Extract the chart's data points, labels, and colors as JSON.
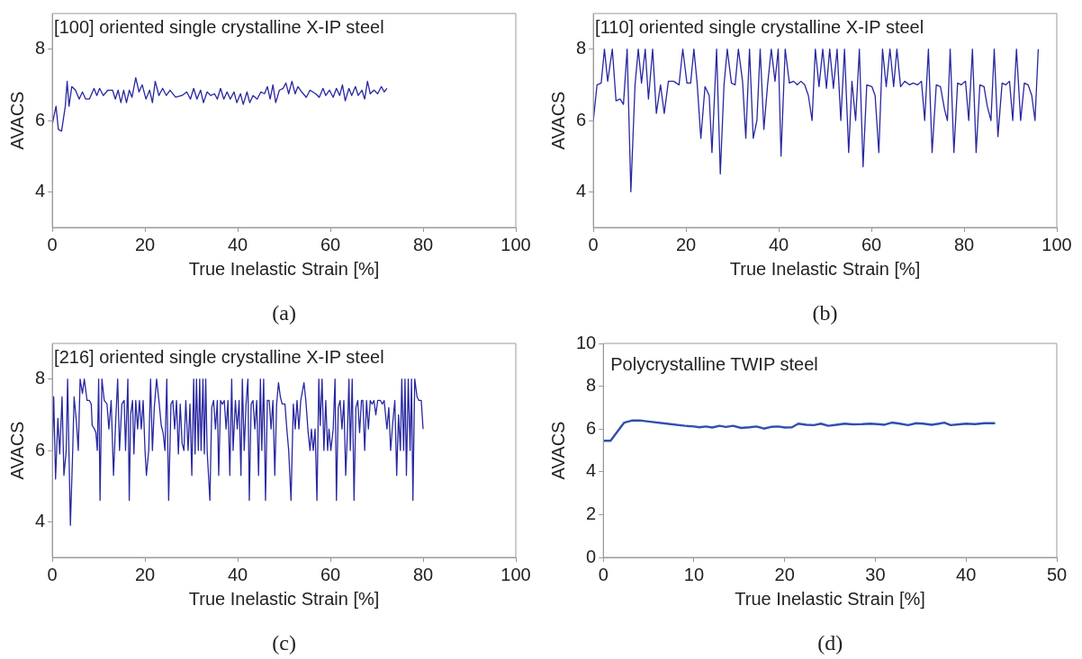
{
  "chart_data": [
    {
      "type": "line",
      "title": "[100] oriented single crystalline X-IP steel",
      "xlabel": "True Inelastic Strain [%]",
      "ylabel": "AVACS",
      "annotations": [
        "(a)"
      ],
      "color": "#2828a0",
      "grid": false,
      "legend": false,
      "marker": "none",
      "line_style": "solid",
      "xlim": [
        0,
        100
      ],
      "ylim": [
        3,
        9
      ],
      "xticks": [
        0,
        20,
        40,
        60,
        80,
        100
      ],
      "yticks": [
        4,
        6,
        8
      ],
      "x": [
        0,
        0.8,
        1.3,
        2,
        2.8,
        3.2,
        3.6,
        4.2,
        5,
        5.8,
        6.5,
        7.2,
        8,
        9,
        9.6,
        10.2,
        11,
        12,
        13,
        13.6,
        14.2,
        14.8,
        15.4,
        16,
        16.6,
        17.2,
        18,
        18.7,
        19.4,
        20.2,
        21,
        21.6,
        22.2,
        23,
        23.8,
        24.6,
        25.4,
        26.6,
        28,
        29,
        29.8,
        30.5,
        31.2,
        32,
        32.6,
        33.4,
        34.2,
        35,
        35.6,
        36.3,
        37,
        37.7,
        38.4,
        39.2,
        39.8,
        40.6,
        41.2,
        42,
        42.6,
        43.3,
        44.2,
        45,
        45.8,
        46.4,
        47,
        47.6,
        48.2,
        49,
        49.8,
        50.4,
        51,
        51.7,
        52.4,
        53,
        53.8,
        54.8,
        55.6,
        56.8,
        57.6,
        58.4,
        59,
        59.8,
        60.6,
        61.3,
        62,
        62.6,
        63.2,
        64,
        64.6,
        65.4,
        66,
        66.8,
        67.4,
        68,
        68.6,
        69.4,
        70.2,
        71,
        71.6,
        72.2
      ],
      "values": [
        5.9,
        6.4,
        5.75,
        5.7,
        6.4,
        7.1,
        6.4,
        6.95,
        6.85,
        6.6,
        6.8,
        6.6,
        6.6,
        6.9,
        6.7,
        6.9,
        6.7,
        6.85,
        6.85,
        6.6,
        6.85,
        6.5,
        6.85,
        6.5,
        6.85,
        6.65,
        7.2,
        6.8,
        7.0,
        6.6,
        6.85,
        6.5,
        7.1,
        6.7,
        6.9,
        6.7,
        6.85,
        6.65,
        6.7,
        6.8,
        6.6,
        6.9,
        6.6,
        6.85,
        6.5,
        6.8,
        6.7,
        6.75,
        6.6,
        6.9,
        6.6,
        6.8,
        6.6,
        6.8,
        6.5,
        6.75,
        6.45,
        6.8,
        6.5,
        6.7,
        6.6,
        6.8,
        6.75,
        6.95,
        6.6,
        7.0,
        6.5,
        6.85,
        6.9,
        7.05,
        6.75,
        7.1,
        6.75,
        6.95,
        6.8,
        6.65,
        6.85,
        6.75,
        6.65,
        6.9,
        6.7,
        6.85,
        6.65,
        6.9,
        6.7,
        7.0,
        6.55,
        6.9,
        6.7,
        6.95,
        6.7,
        6.85,
        6.6,
        7.1,
        6.75,
        6.85,
        6.75,
        6.95,
        6.8,
        6.9
      ]
    },
    {
      "type": "line",
      "title": "[110] oriented single crystalline X-IP steel",
      "xlabel": "True Inelastic Strain [%]",
      "ylabel": "AVACS",
      "annotations": [
        "(b)"
      ],
      "color": "#2828a0",
      "grid": false,
      "legend": false,
      "marker": "none",
      "line_style": "solid",
      "xlim": [
        0,
        100
      ],
      "ylim": [
        3,
        9
      ],
      "xticks": [
        0,
        20,
        40,
        60,
        80,
        100
      ],
      "yticks": [
        4,
        6,
        8
      ],
      "x": [
        0,
        0.8,
        1.7,
        2.4,
        3.1,
        4.1,
        4.9,
        5.8,
        6.5,
        7.3,
        8.1,
        9,
        9.7,
        10.4,
        11.2,
        11.9,
        12.8,
        13.6,
        14.5,
        15.3,
        16.2,
        17.3,
        18.5,
        19.3,
        20.2,
        21,
        21.7,
        22.4,
        23.2,
        24.1,
        25,
        25.6,
        26.6,
        27.4,
        28.2,
        28.9,
        29.8,
        30.6,
        31.3,
        32.2,
        32.9,
        33.7,
        34.5,
        35.3,
        36,
        36.8,
        37.6,
        38.4,
        39.2,
        39.9,
        40.5,
        41.4,
        42.3,
        43.2,
        44,
        44.8,
        45.6,
        46.4,
        47.2,
        47.9,
        48.7,
        49.5,
        50.3,
        51,
        51.8,
        52.6,
        53.4,
        54.2,
        55.1,
        55.8,
        56.6,
        57.4,
        58.2,
        59,
        60.1,
        60.8,
        61.6,
        62.4,
        63.2,
        64,
        64.8,
        65.5,
        66.3,
        67.2,
        68.2,
        69,
        70,
        70.8,
        71.5,
        72.3,
        73.1,
        74,
        74.9,
        75.8,
        76.4,
        77,
        77.8,
        78.6,
        79.4,
        80.3,
        81,
        81.8,
        82.6,
        83.4,
        84.3,
        85,
        85.8,
        86.5,
        87.3,
        88.2,
        89,
        89.8,
        90.5,
        91.3,
        92.2,
        93,
        93.8,
        94.6,
        95.3,
        96
      ],
      "values": [
        6.0,
        7.0,
        7.05,
        8.0,
        7.1,
        8.0,
        6.55,
        6.6,
        6.45,
        8.0,
        4.0,
        7.0,
        8.0,
        7.05,
        8.0,
        6.6,
        8.0,
        6.2,
        7.0,
        6.2,
        7.1,
        7.1,
        7.0,
        8.0,
        7.05,
        7.05,
        8.0,
        7.05,
        5.5,
        6.95,
        6.7,
        5.1,
        8.0,
        4.5,
        7.0,
        8.0,
        7.05,
        7.0,
        8.0,
        7.1,
        5.5,
        8.0,
        5.5,
        6.0,
        8.0,
        5.75,
        7.0,
        8.0,
        7.1,
        8.0,
        5.0,
        8.0,
        7.05,
        7.1,
        7.0,
        7.1,
        7.0,
        6.7,
        6.0,
        8.0,
        6.95,
        8.0,
        6.9,
        8.0,
        6.9,
        8.0,
        6.0,
        8.0,
        5.1,
        7.1,
        6.0,
        8.0,
        4.7,
        7.0,
        6.95,
        6.7,
        5.1,
        8.0,
        6.95,
        8.0,
        6.95,
        8.0,
        6.95,
        7.1,
        7.0,
        7.05,
        7.0,
        7.1,
        6.0,
        8.0,
        5.1,
        7.0,
        6.95,
        6.3,
        6.0,
        8.0,
        5.1,
        7.05,
        7.0,
        7.1,
        6.0,
        8.0,
        5.1,
        7.0,
        6.95,
        6.4,
        6.0,
        8.0,
        5.55,
        7.05,
        7.0,
        7.1,
        6.0,
        8.0,
        6.0,
        7.05,
        7.0,
        6.7,
        6.0,
        8.0
      ]
    },
    {
      "type": "line",
      "title": "[216] oriented single crystalline X-IP steel",
      "xlabel": "True Inelastic Strain [%]",
      "ylabel": "AVACS",
      "annotations": [
        "(c)"
      ],
      "color": "#2828a0",
      "grid": false,
      "legend": false,
      "marker": "none",
      "line_style": "solid",
      "xlim": [
        0,
        100
      ],
      "ylim": [
        3,
        9
      ],
      "xticks": [
        0,
        20,
        40,
        60,
        80,
        100
      ],
      "yticks": [
        4,
        6,
        8
      ],
      "x": [
        0,
        0.3,
        0.7,
        1.2,
        1.6,
        2.1,
        2.5,
        3,
        3.3,
        3.6,
        3.9,
        4.4,
        4.7,
        5.2,
        5.6,
        6,
        6.5,
        6.9,
        7.5,
        8,
        8.4,
        8.6,
        9.1,
        9.4,
        9.7,
        10,
        10.3,
        10.7,
        11.2,
        11.8,
        12.2,
        12.7,
        13.2,
        13.7,
        14.1,
        14.5,
        15,
        15.5,
        15.8,
        16.3,
        16.6,
        16.9,
        17.3,
        17.6,
        18,
        18.4,
        18.8,
        19.2,
        19.6,
        20,
        20.3,
        20.8,
        21.2,
        21.6,
        22,
        22.5,
        23,
        23.5,
        23.9,
        24.3,
        24.7,
        25.1,
        25.6,
        26,
        26.4,
        26.8,
        27.2,
        27.6,
        28,
        28.4,
        28.8,
        29.3,
        29.7,
        30.1,
        30.5,
        30.8,
        31.1,
        31.5,
        31.8,
        32.1,
        32.5,
        32.8,
        33.1,
        33.4,
        34,
        34.4,
        34.8,
        35.2,
        35.6,
        35.9,
        36.3,
        36.7,
        37.1,
        37.5,
        37.9,
        38.3,
        38.7,
        39,
        39.5,
        39.9,
        40.3,
        40.7,
        41,
        41.4,
        41.8,
        42.2,
        42.5,
        42.9,
        43.3,
        43.7,
        44.1,
        44.5,
        44.9,
        45.2,
        45.6,
        46,
        46.4,
        46.8,
        47.2,
        47.6,
        48,
        48.4,
        48.8,
        49.2,
        49.6,
        50.2,
        50.6,
        51,
        51.5,
        52,
        52.4,
        52.8,
        53.2,
        53.6,
        54.3,
        54.7,
        55.2,
        55.6,
        55.9,
        56.3,
        56.7,
        57.1,
        57.5,
        57.8,
        58.2,
        58.6,
        59,
        59.4,
        59.7,
        60.1,
        60.6,
        61,
        61.3,
        61.7,
        62.1,
        62.5,
        62.9,
        63.3,
        63.7,
        64,
        64.3,
        64.7,
        65.1,
        65.5,
        65.9,
        66.3,
        66.7,
        67,
        67.4,
        67.8,
        68.2,
        68.6,
        69,
        69.4,
        69.8,
        70.2,
        70.8,
        71.2,
        71.6,
        72.2,
        72.6,
        73,
        73.4,
        73.9,
        74.3,
        74.7,
        75.1,
        75.4,
        75.8,
        76.1,
        76.4,
        76.8,
        77.2,
        77.5,
        77.8,
        78.2,
        78.7,
        79.1,
        79.6,
        80
      ],
      "values": [
        6.0,
        7.5,
        5.2,
        6.9,
        5.9,
        7.5,
        5.3,
        6.0,
        8.0,
        5.9,
        3.9,
        6.0,
        7.5,
        6.8,
        6.0,
        8.0,
        7.6,
        8.0,
        7.4,
        7.4,
        7.3,
        6.7,
        6.6,
        6.5,
        6.0,
        8.0,
        4.6,
        8.0,
        7.4,
        7.3,
        6.6,
        7.4,
        5.3,
        6.9,
        8.0,
        6.0,
        7.3,
        7.4,
        6.0,
        8.0,
        4.6,
        7.0,
        7.4,
        5.9,
        7.4,
        6.6,
        7.4,
        6.6,
        7.4,
        6.0,
        5.3,
        6.0,
        8.0,
        6.0,
        7.2,
        8.0,
        7.4,
        6.7,
        6.5,
        6.0,
        8.0,
        4.6,
        7.3,
        7.4,
        6.6,
        7.4,
        5.9,
        7.3,
        6.2,
        6.0,
        7.4,
        6.0,
        7.3,
        5.3,
        8.0,
        5.9,
        8.0,
        6.0,
        8.0,
        6.0,
        8.0,
        5.9,
        8.0,
        6.0,
        4.6,
        7.2,
        7.4,
        6.6,
        7.4,
        5.3,
        7.4,
        7.3,
        7.4,
        6.6,
        7.4,
        5.3,
        8.0,
        6.0,
        7.4,
        6.6,
        7.4,
        5.3,
        8.0,
        6.0,
        7.3,
        8.0,
        4.6,
        7.3,
        7.4,
        6.6,
        7.4,
        5.3,
        8.0,
        6.0,
        8.0,
        4.6,
        7.4,
        7.4,
        6.6,
        7.4,
        5.3,
        7.3,
        7.9,
        7.5,
        7.3,
        7.3,
        6.6,
        6.0,
        4.6,
        7.3,
        6.6,
        7.4,
        6.6,
        7.4,
        7.9,
        7.4,
        6.5,
        6.0,
        6.6,
        6.0,
        6.6,
        4.6,
        8.0,
        6.7,
        8.0,
        6.0,
        7.4,
        6.0,
        6.6,
        6.0,
        6.6,
        8.0,
        4.6,
        7.2,
        7.4,
        6.6,
        7.4,
        5.3,
        6.6,
        8.0,
        6.0,
        8.0,
        4.6,
        7.2,
        7.4,
        6.5,
        7.4,
        7.4,
        6.0,
        7.4,
        6.6,
        7.4,
        7.3,
        7.4,
        7.0,
        7.4,
        7.4,
        7.3,
        7.4,
        6.6,
        7.2,
        6.0,
        6.7,
        7.4,
        5.3,
        7.0,
        6.0,
        8.0,
        6.0,
        8.0,
        5.3,
        8.0,
        6.0,
        8.0,
        4.6,
        8.0,
        7.5,
        7.4,
        7.4,
        6.6
      ]
    },
    {
      "type": "line",
      "title": "Polycrystalline TWIP steel",
      "xlabel": "True Inelastic Strain [%]",
      "ylabel": "AVACS",
      "annotations": [
        "(d)"
      ],
      "color": "#2f4fb0",
      "grid": false,
      "legend": false,
      "marker": "none",
      "line_style": "solid",
      "xlim": [
        0,
        50
      ],
      "ylim": [
        0,
        10
      ],
      "xticks": [
        0,
        10,
        20,
        30,
        40,
        50
      ],
      "yticks": [
        0,
        2,
        4,
        6,
        8,
        10
      ],
      "x": [
        0,
        0.8,
        1.5,
        2.3,
        3.2,
        4,
        5,
        7,
        9,
        10,
        10.6,
        11.3,
        12,
        12.8,
        13.5,
        14.3,
        15.2,
        16.1,
        16.9,
        17.7,
        18.5,
        19.3,
        20,
        20.8,
        21.5,
        22.4,
        23.2,
        24,
        24.8,
        25.7,
        26.6,
        27.5,
        28.5,
        29.5,
        30.5,
        31,
        31.8,
        32.7,
        33.6,
        34.5,
        35.3,
        36.2,
        37,
        37.6,
        38.3,
        39.2,
        40,
        41,
        42,
        43.2
      ],
      "values": [
        5.45,
        5.45,
        5.85,
        6.3,
        6.4,
        6.4,
        6.35,
        6.25,
        6.15,
        6.12,
        6.08,
        6.12,
        6.07,
        6.15,
        6.1,
        6.15,
        6.05,
        6.08,
        6.12,
        6.02,
        6.1,
        6.12,
        6.07,
        6.08,
        6.25,
        6.2,
        6.18,
        6.25,
        6.15,
        6.2,
        6.25,
        6.22,
        6.23,
        6.25,
        6.22,
        6.2,
        6.3,
        6.25,
        6.18,
        6.27,
        6.25,
        6.2,
        6.25,
        6.3,
        6.18,
        6.22,
        6.25,
        6.23,
        6.27,
        6.27
      ]
    }
  ]
}
